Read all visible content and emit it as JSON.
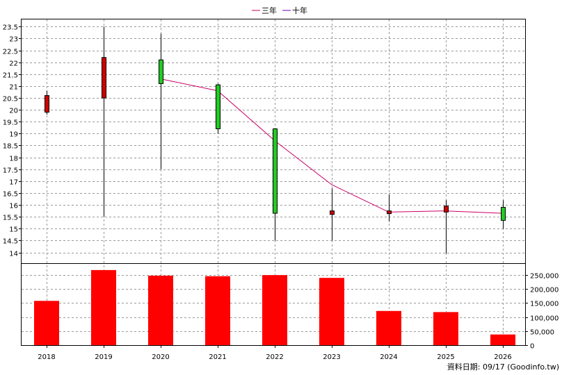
{
  "legend": [
    {
      "label": "三年",
      "color": "#cc0066"
    },
    {
      "label": "十年",
      "color": "#6600cc"
    }
  ],
  "footer": "資料日期: 09/17  (Goodinfo.tw)",
  "colors": {
    "up": "#d00000",
    "down": "#22cc22",
    "bar": "#ff0000",
    "grid": "#999999",
    "ma3": "#cc0066",
    "ma10": "#6600cc"
  },
  "chart_data": [
    {
      "type": "candlestick",
      "categories": [
        "2018",
        "2019",
        "2020",
        "2021",
        "2022",
        "2023",
        "2024",
        "2025",
        "2026"
      ],
      "ohlc": [
        {
          "open": 19.9,
          "high": 20.8,
          "low": 19.8,
          "close": 20.6
        },
        {
          "open": 20.5,
          "high": 23.5,
          "low": 15.5,
          "close": 22.2
        },
        {
          "open": 22.1,
          "high": 23.2,
          "low": 17.5,
          "close": 21.1
        },
        {
          "open": 21.05,
          "high": 21.1,
          "low": 19.0,
          "close": 19.2
        },
        {
          "open": 19.2,
          "high": 19.2,
          "low": 14.5,
          "close": 15.65
        },
        {
          "open": 15.6,
          "high": 16.7,
          "low": 14.5,
          "close": 15.75
        },
        {
          "open": 15.65,
          "high": 16.45,
          "low": 15.3,
          "close": 15.75
        },
        {
          "open": 15.7,
          "high": 16.2,
          "low": 13.95,
          "close": 15.95
        },
        {
          "open": 15.9,
          "high": 16.2,
          "low": 15.0,
          "close": 15.35
        }
      ],
      "series": [
        {
          "name": "三年",
          "x": [
            "2020",
            "2021",
            "2022",
            "2023",
            "2024",
            "2025",
            "2026"
          ],
          "values": [
            21.3,
            20.8,
            18.7,
            16.85,
            15.7,
            15.75,
            15.65
          ]
        }
      ],
      "yticks": [
        "14",
        "14.5",
        "15",
        "15.5",
        "16",
        "16.5",
        "17",
        "17.5",
        "18",
        "18.5",
        "19",
        "19.5",
        "20",
        "20.5",
        "21",
        "21.5",
        "22",
        "22.5",
        "23",
        "23.5"
      ],
      "ylim": [
        13.55,
        23.8
      ],
      "grid": true,
      "legend_position": "top-center"
    },
    {
      "type": "bar",
      "categories": [
        "2018",
        "2019",
        "2020",
        "2021",
        "2022",
        "2023",
        "2024",
        "2025",
        "2026"
      ],
      "values": [
        158000,
        268000,
        248000,
        246000,
        250000,
        240000,
        122000,
        118000,
        38000
      ],
      "yticks": [
        "0",
        "50,000",
        "100,000",
        "150,000",
        "200,000",
        "250,000"
      ],
      "ylim": [
        0,
        290000
      ],
      "grid": true
    }
  ]
}
